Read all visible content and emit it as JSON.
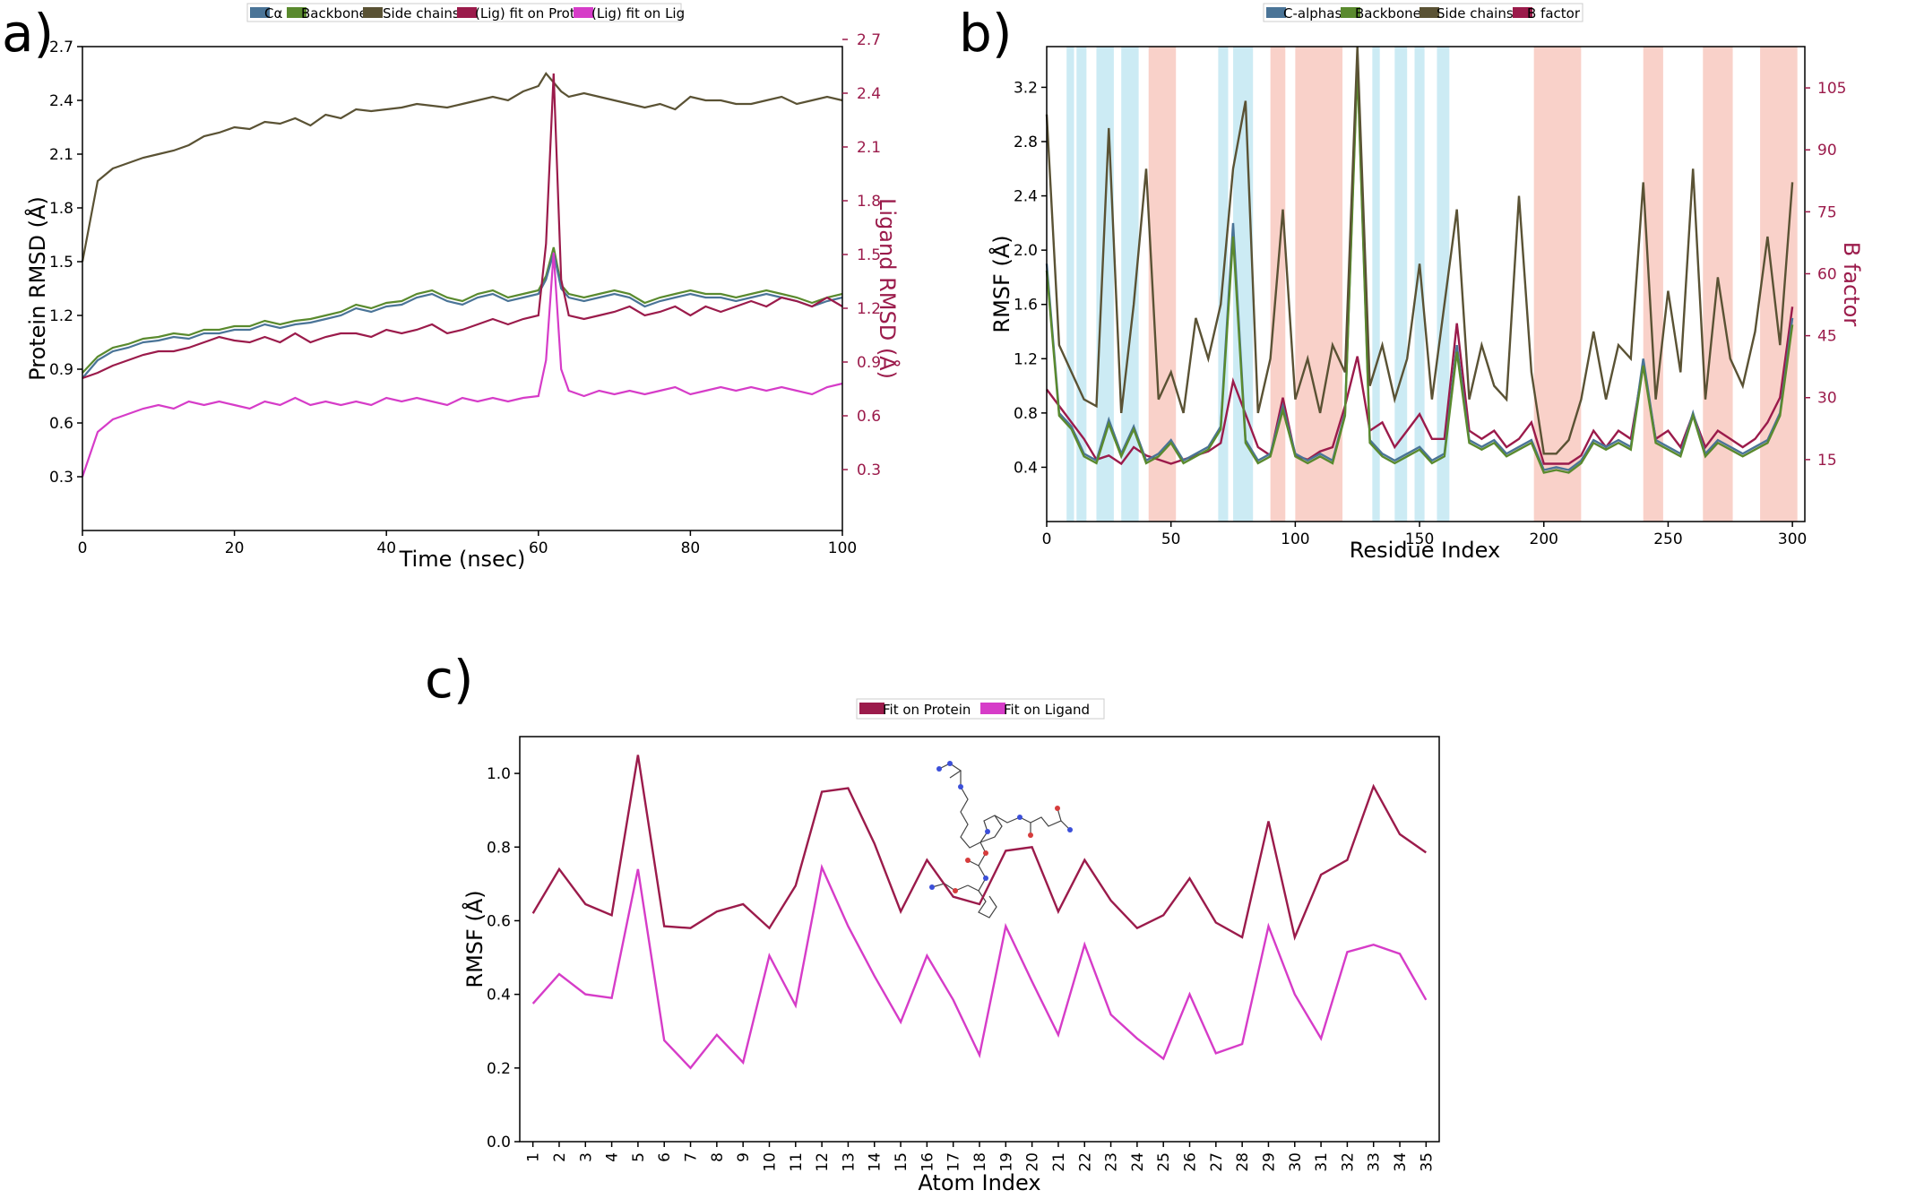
{
  "figure": {
    "panels": [
      {
        "label": "a)",
        "legend": [
          "Cα",
          "Backbone",
          "Side chains",
          "(Lig) fit on Prot",
          "(Lig) fit on Lig"
        ],
        "xlabel": "Time (nsec)",
        "ylabel": "Protein RMSD (Å)",
        "y2label": "Ligand RMSD (Å)"
      },
      {
        "label": "b)",
        "legend": [
          "C-alphas",
          "Backbone",
          "Side chains",
          "B factor"
        ],
        "xlabel": "Residue Index",
        "ylabel": "RMSF (Å)",
        "y2label": "B factor"
      },
      {
        "label": "c)",
        "legend": [
          "Fit on Protein",
          "Fit on Ligand"
        ],
        "xlabel": "Atom Index",
        "ylabel": "RMSF (Å)"
      }
    ]
  },
  "colors": {
    "calpha": "#4a7497",
    "backbone": "#5a8a2e",
    "sidechains": "#5a5234",
    "lig_prot": "#9b1b4b",
    "lig_lig": "#d63cc8",
    "helix": "#f8c9c0",
    "strand": "#c3e8f2"
  },
  "chart_data": [
    {
      "type": "line",
      "title": "",
      "xlabel": "Time (nsec)",
      "ylabel": "Protein RMSD (Å)",
      "y2label": "Ligand RMSD (Å)",
      "xlim": [
        0,
        100
      ],
      "ylim": [
        0,
        2.7
      ],
      "y2lim": [
        0,
        2.7
      ],
      "xticks": [
        0,
        20,
        40,
        60,
        80,
        100
      ],
      "yticks": [
        0.3,
        0.6,
        0.9,
        1.2,
        1.5,
        1.8,
        2.1,
        2.4,
        2.7
      ],
      "y2ticks": [
        0.3,
        0.6,
        0.9,
        1.2,
        1.5,
        1.8,
        2.1,
        2.4,
        2.7
      ],
      "legend_position": "top",
      "x": [
        0,
        2,
        4,
        6,
        8,
        10,
        12,
        14,
        16,
        18,
        20,
        22,
        24,
        26,
        28,
        30,
        32,
        34,
        36,
        38,
        40,
        42,
        44,
        46,
        48,
        50,
        52,
        54,
        56,
        58,
        60,
        61,
        62,
        63,
        64,
        66,
        68,
        70,
        72,
        74,
        76,
        78,
        80,
        82,
        84,
        86,
        88,
        90,
        92,
        94,
        96,
        98,
        100
      ],
      "series": [
        {
          "name": "Cα",
          "axis": "left",
          "values": [
            0.85,
            0.95,
            1.0,
            1.02,
            1.05,
            1.06,
            1.08,
            1.07,
            1.1,
            1.1,
            1.12,
            1.12,
            1.15,
            1.13,
            1.15,
            1.16,
            1.18,
            1.2,
            1.24,
            1.22,
            1.25,
            1.26,
            1.3,
            1.32,
            1.28,
            1.26,
            1.3,
            1.32,
            1.28,
            1.3,
            1.32,
            1.4,
            1.55,
            1.35,
            1.3,
            1.28,
            1.3,
            1.32,
            1.3,
            1.25,
            1.28,
            1.3,
            1.32,
            1.3,
            1.3,
            1.28,
            1.3,
            1.32,
            1.3,
            1.28,
            1.25,
            1.28,
            1.3
          ]
        },
        {
          "name": "Backbone",
          "axis": "left",
          "values": [
            0.88,
            0.97,
            1.02,
            1.04,
            1.07,
            1.08,
            1.1,
            1.09,
            1.12,
            1.12,
            1.14,
            1.14,
            1.17,
            1.15,
            1.17,
            1.18,
            1.2,
            1.22,
            1.26,
            1.24,
            1.27,
            1.28,
            1.32,
            1.34,
            1.3,
            1.28,
            1.32,
            1.34,
            1.3,
            1.32,
            1.34,
            1.42,
            1.58,
            1.37,
            1.32,
            1.3,
            1.32,
            1.34,
            1.32,
            1.27,
            1.3,
            1.32,
            1.34,
            1.32,
            1.32,
            1.3,
            1.32,
            1.34,
            1.32,
            1.3,
            1.27,
            1.3,
            1.32
          ]
        },
        {
          "name": "Side chains",
          "axis": "left",
          "values": [
            1.5,
            1.95,
            2.02,
            2.05,
            2.08,
            2.1,
            2.12,
            2.15,
            2.2,
            2.22,
            2.25,
            2.24,
            2.28,
            2.27,
            2.3,
            2.26,
            2.32,
            2.3,
            2.35,
            2.34,
            2.35,
            2.36,
            2.38,
            2.37,
            2.36,
            2.38,
            2.4,
            2.42,
            2.4,
            2.45,
            2.48,
            2.55,
            2.5,
            2.45,
            2.42,
            2.44,
            2.42,
            2.4,
            2.38,
            2.36,
            2.38,
            2.35,
            2.42,
            2.4,
            2.4,
            2.38,
            2.38,
            2.4,
            2.42,
            2.38,
            2.4,
            2.42,
            2.4
          ]
        },
        {
          "name": "(Lig) fit on Prot",
          "axis": "right",
          "values": [
            0.85,
            0.88,
            0.92,
            0.95,
            0.98,
            1.0,
            1.0,
            1.02,
            1.05,
            1.08,
            1.06,
            1.05,
            1.08,
            1.05,
            1.1,
            1.05,
            1.08,
            1.1,
            1.1,
            1.08,
            1.12,
            1.1,
            1.12,
            1.15,
            1.1,
            1.12,
            1.15,
            1.18,
            1.15,
            1.18,
            1.2,
            1.6,
            2.55,
            1.4,
            1.2,
            1.18,
            1.2,
            1.22,
            1.25,
            1.2,
            1.22,
            1.25,
            1.2,
            1.25,
            1.22,
            1.25,
            1.28,
            1.25,
            1.3,
            1.28,
            1.25,
            1.3,
            1.25
          ]
        },
        {
          "name": "(Lig) fit on Lig",
          "axis": "right",
          "values": [
            0.3,
            0.55,
            0.62,
            0.65,
            0.68,
            0.7,
            0.68,
            0.72,
            0.7,
            0.72,
            0.7,
            0.68,
            0.72,
            0.7,
            0.74,
            0.7,
            0.72,
            0.7,
            0.72,
            0.7,
            0.74,
            0.72,
            0.74,
            0.72,
            0.7,
            0.74,
            0.72,
            0.74,
            0.72,
            0.74,
            0.75,
            0.95,
            1.55,
            0.9,
            0.78,
            0.75,
            0.78,
            0.76,
            0.78,
            0.76,
            0.78,
            0.8,
            0.76,
            0.78,
            0.8,
            0.78,
            0.8,
            0.78,
            0.8,
            0.78,
            0.76,
            0.8,
            0.82
          ]
        }
      ]
    },
    {
      "type": "line",
      "title": "",
      "xlabel": "Residue Index",
      "ylabel": "RMSF (Å)",
      "y2label": "B factor",
      "xlim": [
        0,
        305
      ],
      "ylim": [
        0,
        3.5
      ],
      "y2lim": [
        0,
        115
      ],
      "xticks": [
        0,
        50,
        100,
        150,
        200,
        250,
        300
      ],
      "yticks": [
        0.4,
        0.8,
        1.2,
        1.6,
        2.0,
        2.4,
        2.8,
        3.2
      ],
      "y2ticks": [
        15,
        30,
        45,
        60,
        75,
        90,
        105
      ],
      "legend_position": "top",
      "helix_regions": [
        [
          41,
          52
        ],
        [
          90,
          96
        ],
        [
          100,
          119
        ],
        [
          196,
          215
        ],
        [
          240,
          248
        ],
        [
          264,
          276
        ],
        [
          287,
          302
        ]
      ],
      "strand_regions": [
        [
          8,
          11
        ],
        [
          12,
          16
        ],
        [
          20,
          27
        ],
        [
          30,
          37
        ],
        [
          69,
          73
        ],
        [
          75,
          83
        ],
        [
          131,
          134
        ],
        [
          140,
          145
        ],
        [
          148,
          152
        ],
        [
          157,
          162
        ]
      ],
      "x": [
        0,
        5,
        10,
        15,
        20,
        25,
        30,
        35,
        40,
        45,
        50,
        55,
        60,
        65,
        70,
        75,
        80,
        85,
        90,
        95,
        100,
        105,
        110,
        115,
        120,
        125,
        130,
        135,
        140,
        145,
        150,
        155,
        160,
        165,
        170,
        175,
        180,
        185,
        190,
        195,
        200,
        205,
        210,
        215,
        220,
        225,
        230,
        235,
        240,
        245,
        250,
        255,
        260,
        265,
        270,
        275,
        280,
        285,
        290,
        295,
        300
      ],
      "series": [
        {
          "name": "C-alphas",
          "axis": "left",
          "values": [
            1.9,
            0.8,
            0.7,
            0.5,
            0.45,
            0.75,
            0.5,
            0.7,
            0.45,
            0.5,
            0.6,
            0.45,
            0.5,
            0.55,
            0.7,
            2.2,
            0.6,
            0.45,
            0.5,
            0.85,
            0.5,
            0.45,
            0.5,
            0.45,
            0.8,
            3.4,
            0.6,
            0.5,
            0.45,
            0.5,
            0.55,
            0.45,
            0.5,
            1.3,
            0.6,
            0.55,
            0.6,
            0.5,
            0.55,
            0.6,
            0.38,
            0.4,
            0.38,
            0.45,
            0.6,
            0.55,
            0.6,
            0.55,
            1.2,
            0.6,
            0.55,
            0.5,
            0.8,
            0.5,
            0.6,
            0.55,
            0.5,
            0.55,
            0.6,
            0.8,
            1.5
          ]
        },
        {
          "name": "Backbone",
          "axis": "left",
          "values": [
            1.85,
            0.78,
            0.68,
            0.48,
            0.43,
            0.72,
            0.48,
            0.68,
            0.43,
            0.48,
            0.58,
            0.43,
            0.48,
            0.53,
            0.68,
            2.1,
            0.58,
            0.43,
            0.48,
            0.82,
            0.48,
            0.43,
            0.48,
            0.43,
            0.78,
            3.35,
            0.58,
            0.48,
            0.43,
            0.48,
            0.53,
            0.43,
            0.48,
            1.25,
            0.58,
            0.53,
            0.58,
            0.48,
            0.53,
            0.58,
            0.36,
            0.38,
            0.36,
            0.43,
            0.58,
            0.53,
            0.58,
            0.53,
            1.15,
            0.58,
            0.53,
            0.48,
            0.78,
            0.48,
            0.58,
            0.53,
            0.48,
            0.53,
            0.58,
            0.78,
            1.45
          ]
        },
        {
          "name": "Side chains",
          "axis": "left",
          "values": [
            3.0,
            1.3,
            1.1,
            0.9,
            0.85,
            2.9,
            0.8,
            1.6,
            2.6,
            0.9,
            1.1,
            0.8,
            1.5,
            1.2,
            1.6,
            2.6,
            3.1,
            0.8,
            1.2,
            2.3,
            0.9,
            1.2,
            0.8,
            1.3,
            1.1,
            3.5,
            1.0,
            1.3,
            0.9,
            1.2,
            1.9,
            0.9,
            1.6,
            2.3,
            0.9,
            1.3,
            1.0,
            0.9,
            2.4,
            1.1,
            0.5,
            0.5,
            0.6,
            0.9,
            1.4,
            0.9,
            1.3,
            1.2,
            2.5,
            0.9,
            1.7,
            1.1,
            2.6,
            0.9,
            1.8,
            1.2,
            1.0,
            1.4,
            2.1,
            1.3,
            2.5
          ]
        },
        {
          "name": "B factor",
          "axis": "right",
          "values": [
            32,
            28,
            24,
            20,
            15,
            16,
            14,
            18,
            16,
            15,
            14,
            15,
            16,
            17,
            19,
            34,
            26,
            18,
            16,
            30,
            16,
            15,
            17,
            18,
            28,
            40,
            22,
            24,
            18,
            22,
            26,
            20,
            20,
            48,
            22,
            20,
            22,
            18,
            20,
            24,
            14,
            14,
            14,
            16,
            22,
            18,
            22,
            20,
            38,
            20,
            22,
            18,
            26,
            18,
            22,
            20,
            18,
            20,
            24,
            30,
            52
          ]
        }
      ]
    },
    {
      "type": "line",
      "title": "",
      "xlabel": "Atom Index",
      "ylabel": "RMSF (Å)",
      "xlim": [
        0.5,
        35.5
      ],
      "ylim": [
        0,
        1.1
      ],
      "yticks": [
        0.0,
        0.2,
        0.4,
        0.6,
        0.8,
        1.0
      ],
      "legend_position": "top",
      "categories": [
        "1",
        "2",
        "3",
        "4",
        "5",
        "6",
        "7",
        "8",
        "9",
        "10",
        "11",
        "12",
        "13",
        "14",
        "15",
        "16",
        "17",
        "18",
        "19",
        "20",
        "21",
        "22",
        "23",
        "24",
        "25",
        "26",
        "27",
        "28",
        "29",
        "30",
        "31",
        "32",
        "33",
        "34",
        "35"
      ],
      "series": [
        {
          "name": "Fit on Protein",
          "values": [
            0.62,
            0.74,
            0.645,
            0.615,
            1.05,
            0.585,
            0.58,
            0.625,
            0.645,
            0.58,
            0.695,
            0.95,
            0.96,
            0.81,
            0.625,
            0.765,
            0.665,
            0.645,
            0.79,
            0.8,
            0.625,
            0.765,
            0.655,
            0.58,
            0.615,
            0.715,
            0.595,
            0.555,
            0.87,
            0.555,
            0.725,
            0.765,
            0.965,
            0.835,
            0.785
          ]
        },
        {
          "name": "Fit on Ligand",
          "values": [
            0.375,
            0.455,
            0.4,
            0.39,
            0.74,
            0.275,
            0.2,
            0.29,
            0.215,
            0.505,
            0.37,
            0.745,
            0.585,
            0.45,
            0.325,
            0.505,
            0.385,
            0.235,
            0.585,
            0.435,
            0.29,
            0.535,
            0.345,
            0.28,
            0.225,
            0.4,
            0.24,
            0.265,
            0.585,
            0.4,
            0.28,
            0.515,
            0.535,
            0.51,
            0.385
          ]
        }
      ]
    }
  ]
}
